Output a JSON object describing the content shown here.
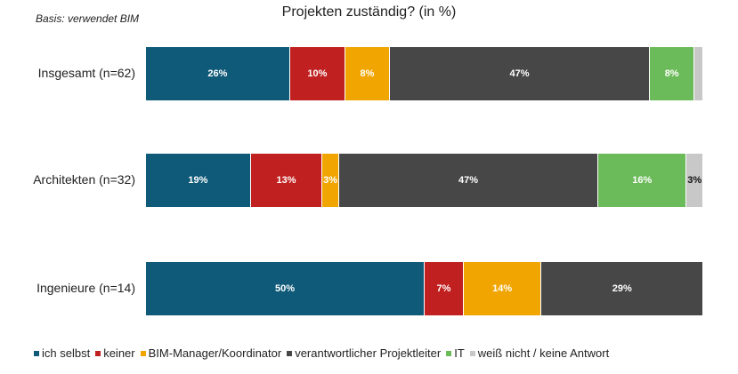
{
  "title": "Projekten zuständig? (in %)",
  "basis": "Basis: verwendet BIM",
  "chart_data": {
    "type": "bar",
    "orientation": "horizontal-stacked-100",
    "title": "Projekten zuständig? (in %)",
    "categories": [
      "Insgesamt (n=62)",
      "Architekten (n=32)",
      "Ingenieure (n=14)"
    ],
    "series": [
      {
        "name": "ich selbst",
        "color": "#0f5a78",
        "values": [
          26,
          19,
          50
        ],
        "labels": [
          "26%",
          "19%",
          "50%"
        ]
      },
      {
        "name": "keiner",
        "color": "#c0201f",
        "values": [
          10,
          13,
          7
        ],
        "labels": [
          "10%",
          "13%",
          "7%"
        ]
      },
      {
        "name": "BIM-Manager/Koordinator",
        "color": "#f0a500",
        "values": [
          8,
          3,
          14
        ],
        "labels": [
          "8%",
          "3%",
          "14%"
        ]
      },
      {
        "name": "verantwortlicher Projektleiter",
        "color": "#474747",
        "values": [
          47,
          47,
          29
        ],
        "labels": [
          "47%",
          "47%",
          "29%"
        ]
      },
      {
        "name": "IT",
        "color": "#6cbb5a",
        "values": [
          8,
          16,
          0
        ],
        "labels": [
          "8%",
          "16%",
          ""
        ]
      },
      {
        "name": "weiß nicht / keine Antwort",
        "color": "#c8c8c8",
        "values": [
          1.6,
          3,
          0
        ],
        "labels": [
          "",
          "3%",
          ""
        ]
      }
    ],
    "xlim": [
      0,
      100
    ],
    "legend_position": "bottom",
    "grid": false
  }
}
